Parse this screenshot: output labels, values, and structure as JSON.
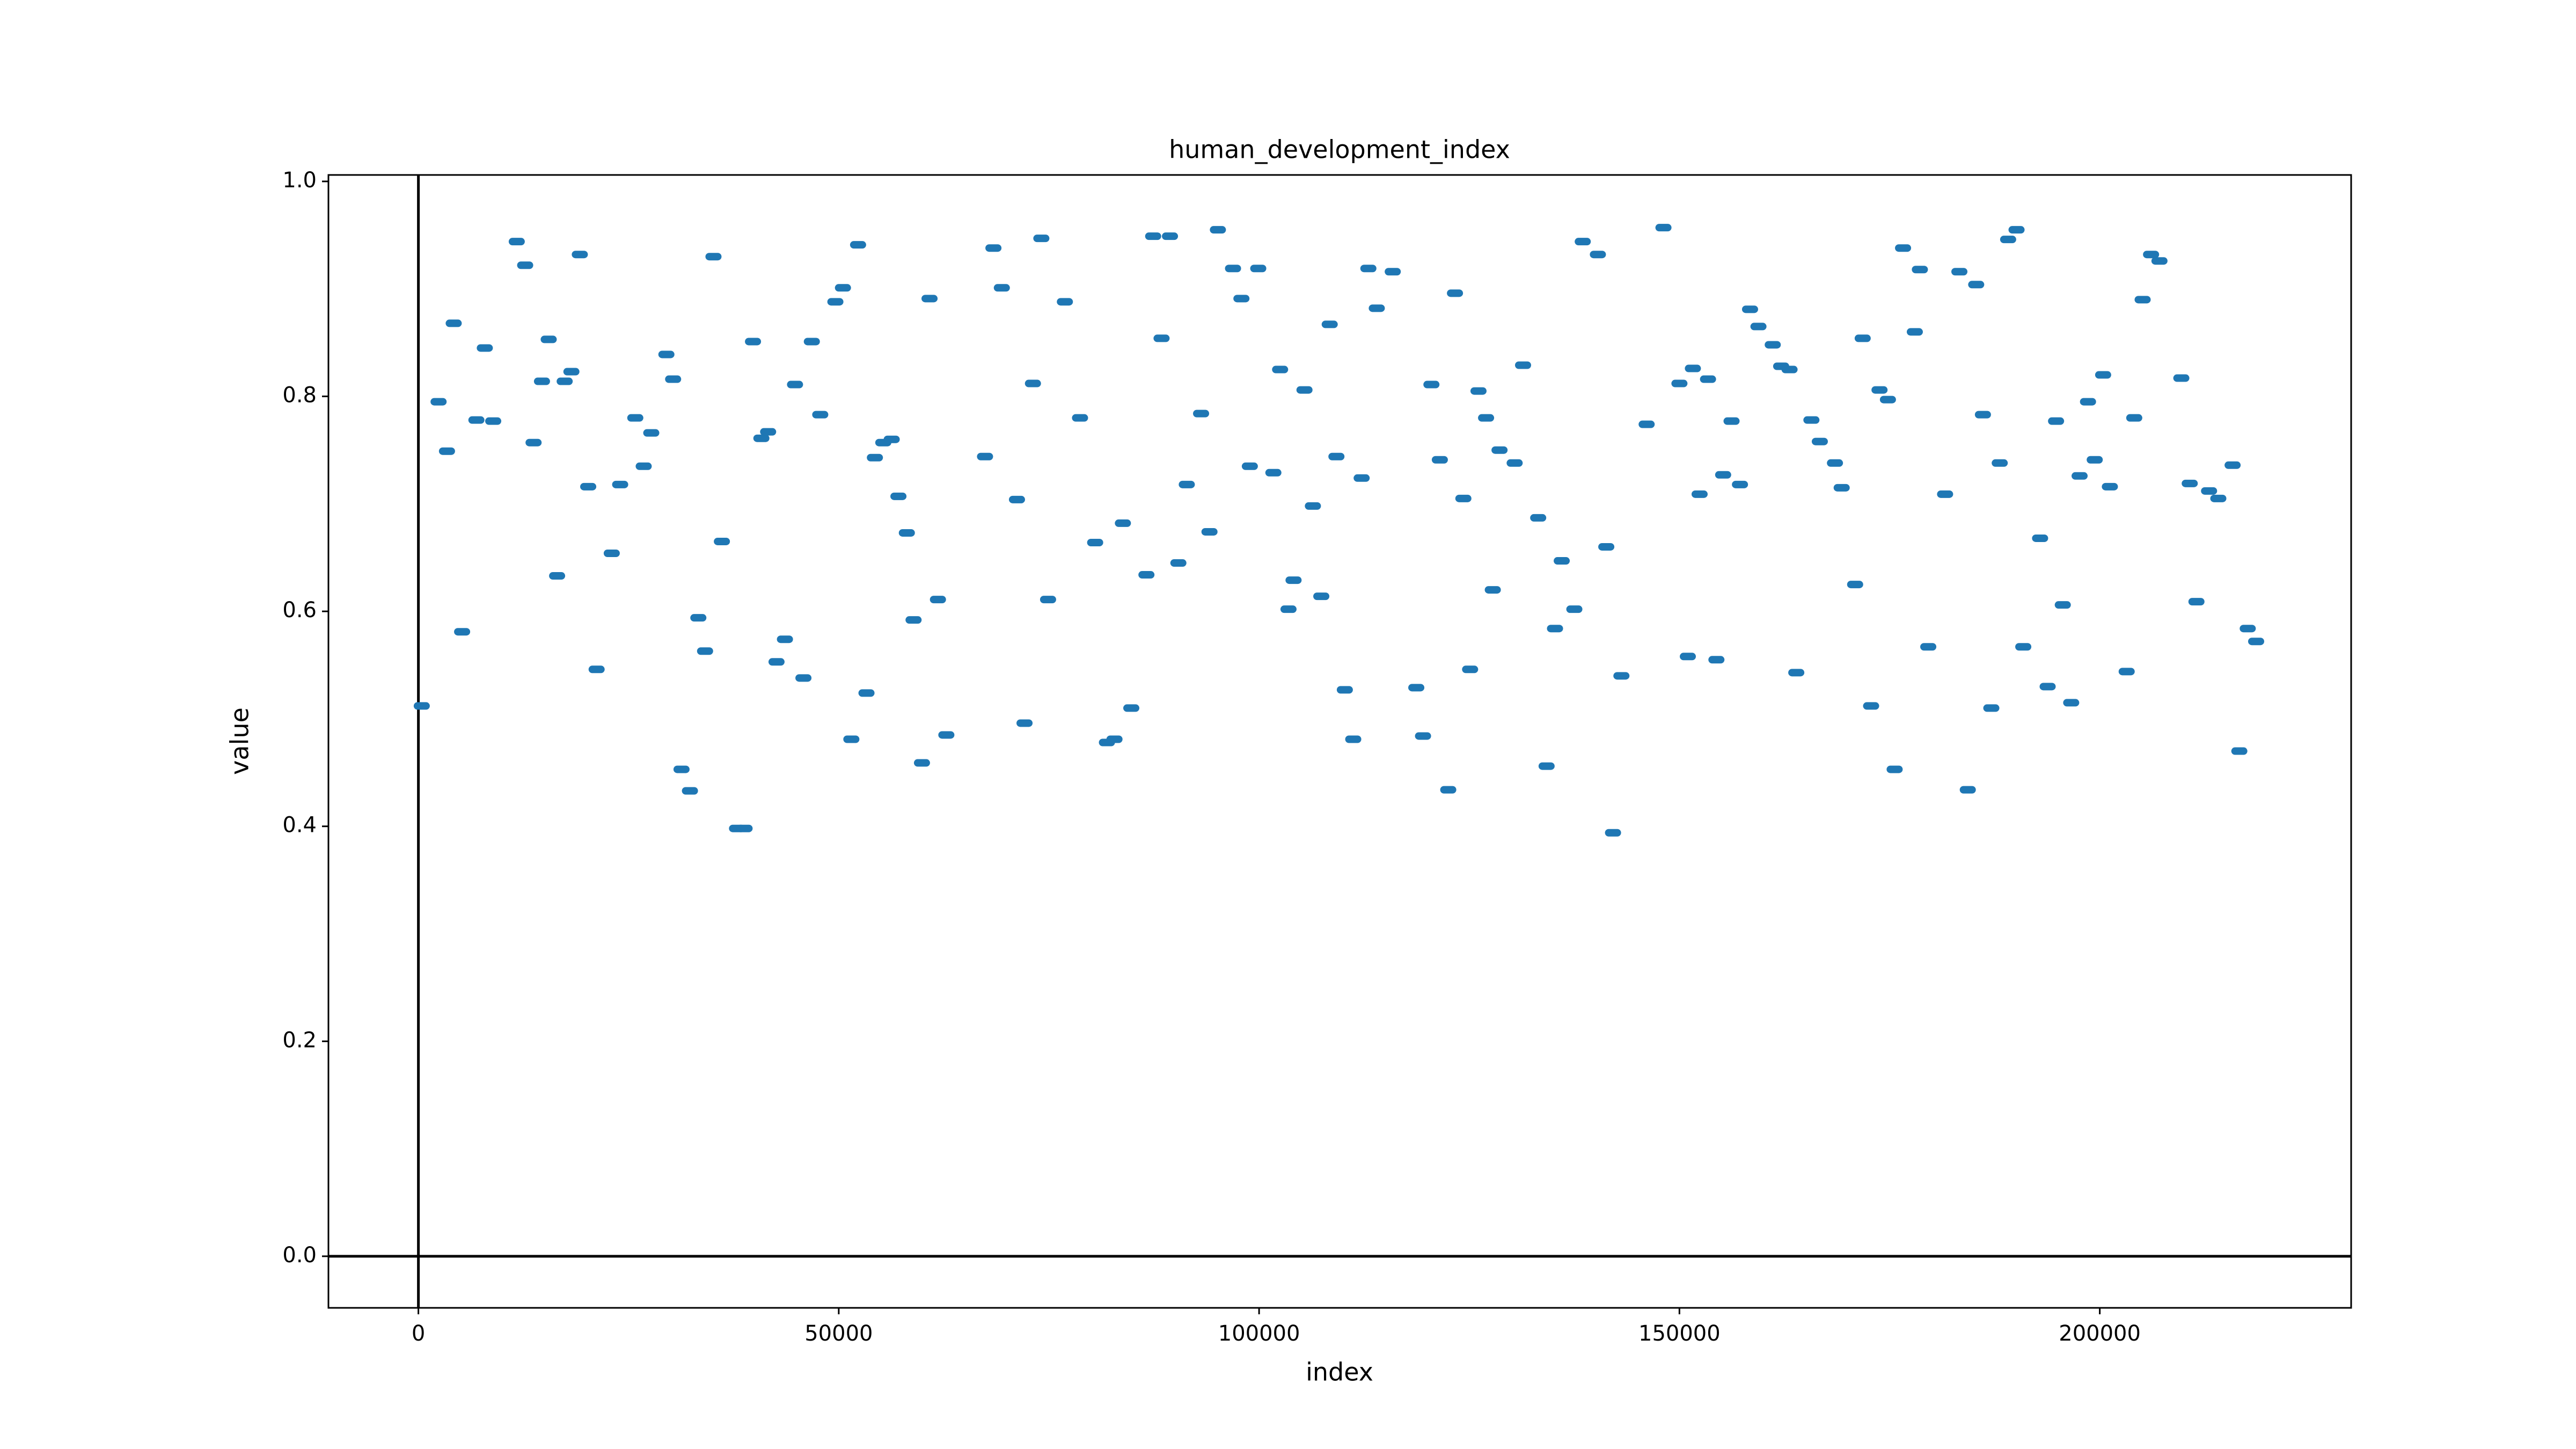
{
  "chart_data": {
    "type": "scatter",
    "title": "human_development_index",
    "x_label": "index",
    "y_label": "value",
    "color": "#1f77b4",
    "x": [
      400,
      2400,
      3400,
      4200,
      5200,
      6900,
      7900,
      8900,
      11700,
      12700,
      13700,
      14700,
      15500,
      16500,
      17400,
      18200,
      19200,
      20200,
      21200,
      23000,
      24000,
      25800,
      26800,
      27700,
      29500,
      30300,
      31300,
      32300,
      33300,
      34100,
      35100,
      36100,
      37900,
      38800,
      39800,
      40800,
      41600,
      42600,
      43600,
      44800,
      45800,
      46800,
      47800,
      49600,
      50500,
      51500,
      52300,
      53300,
      54300,
      55300,
      56300,
      57100,
      58100,
      58900,
      59900,
      60800,
      61800,
      62800,
      67400,
      68400,
      69400,
      71200,
      72100,
      73100,
      74100,
      74900,
      76900,
      78700,
      80500,
      81900,
      82800,
      83800,
      84800,
      86600,
      87400,
      88400,
      89400,
      90400,
      91400,
      93100,
      94100,
      95100,
      96900,
      97900,
      98900,
      99900,
      101700,
      102500,
      103500,
      104100,
      105400,
      106400,
      107400,
      108400,
      109200,
      110200,
      111200,
      112200,
      113000,
      114000,
      115900,
      118700,
      119500,
      120500,
      121500,
      122500,
      123300,
      124300,
      125100,
      126100,
      127000,
      127800,
      128600,
      130400,
      131400,
      133200,
      134200,
      135200,
      136000,
      137500,
      138500,
      140300,
      141300,
      142100,
      143100,
      146100,
      148100,
      150000,
      151000,
      151600,
      152400,
      153400,
      154400,
      155200,
      156200,
      157200,
      158400,
      159400,
      161100,
      162100,
      163100,
      163900,
      165700,
      166700,
      168500,
      169300,
      170900,
      171800,
      172800,
      173800,
      174800,
      175600,
      176600,
      178000,
      178600,
      179600,
      181600,
      183300,
      184300,
      185300,
      186100,
      187100,
      188100,
      189100,
      190100,
      190900,
      192900,
      193800,
      194800,
      195600,
      196600,
      197600,
      198600,
      199400,
      200400,
      201200,
      203200,
      204100,
      205100,
      206100,
      207100,
      209700,
      210700,
      211500,
      213000,
      214100,
      215800,
      216600,
      217600,
      218600
    ],
    "values": [
      0.512,
      0.795,
      0.749,
      0.868,
      0.581,
      0.778,
      0.845,
      0.777,
      0.944,
      0.922,
      0.757,
      0.814,
      0.853,
      0.633,
      0.814,
      0.823,
      0.932,
      0.716,
      0.546,
      0.654,
      0.718,
      0.78,
      0.735,
      0.766,
      0.839,
      0.816,
      0.453,
      0.433,
      0.594,
      0.563,
      0.93,
      0.665,
      0.398,
      0.398,
      0.851,
      0.761,
      0.767,
      0.553,
      0.574,
      0.811,
      0.538,
      0.851,
      0.783,
      0.888,
      0.901,
      0.481,
      0.941,
      0.524,
      0.743,
      0.757,
      0.76,
      0.707,
      0.673,
      0.592,
      0.459,
      0.891,
      0.611,
      0.485,
      0.744,
      0.938,
      0.901,
      0.704,
      0.496,
      0.812,
      0.947,
      0.611,
      0.888,
      0.78,
      0.664,
      0.478,
      0.481,
      0.682,
      0.51,
      0.634,
      0.949,
      0.854,
      0.949,
      0.645,
      0.718,
      0.784,
      0.674,
      0.955,
      0.919,
      0.891,
      0.735,
      0.919,
      0.729,
      0.825,
      0.602,
      0.629,
      0.806,
      0.698,
      0.614,
      0.867,
      0.744,
      0.527,
      0.481,
      0.724,
      0.919,
      0.882,
      0.916,
      0.529,
      0.484,
      0.811,
      0.741,
      0.434,
      0.896,
      0.705,
      0.546,
      0.805,
      0.78,
      0.62,
      0.75,
      0.738,
      0.829,
      0.687,
      0.456,
      0.584,
      0.647,
      0.602,
      0.944,
      0.932,
      0.66,
      0.394,
      0.54,
      0.774,
      0.957,
      0.812,
      0.558,
      0.826,
      0.709,
      0.816,
      0.555,
      0.727,
      0.777,
      0.718,
      0.881,
      0.865,
      0.848,
      0.828,
      0.825,
      0.543,
      0.778,
      0.758,
      0.738,
      0.715,
      0.625,
      0.854,
      0.512,
      0.806,
      0.797,
      0.453,
      0.938,
      0.86,
      0.918,
      0.567,
      0.709,
      0.916,
      0.434,
      0.904,
      0.783,
      0.51,
      0.738,
      0.946,
      0.955,
      0.567,
      0.668,
      0.53,
      0.777,
      0.606,
      0.515,
      0.726,
      0.795,
      0.741,
      0.82,
      0.716,
      0.544,
      0.78,
      0.89,
      0.932,
      0.926,
      0.817,
      0.719,
      0.609,
      0.712,
      0.705,
      0.736,
      0.47,
      0.584,
      0.572
    ],
    "xlim": [
      -10700,
      229900
    ],
    "ylim": [
      -0.048,
      1.006
    ],
    "xticks": [
      0,
      50000,
      100000,
      150000,
      200000
    ],
    "yticks": [
      {
        "value": 0,
        "label": "0.0"
      },
      {
        "value": 0.2,
        "label": "0.2"
      },
      {
        "value": 0.4,
        "label": "0.4"
      },
      {
        "value": 0.6,
        "label": "0.6"
      },
      {
        "value": 0.8,
        "label": "0.8"
      },
      {
        "value": 1,
        "label": "1.0"
      }
    ]
  }
}
